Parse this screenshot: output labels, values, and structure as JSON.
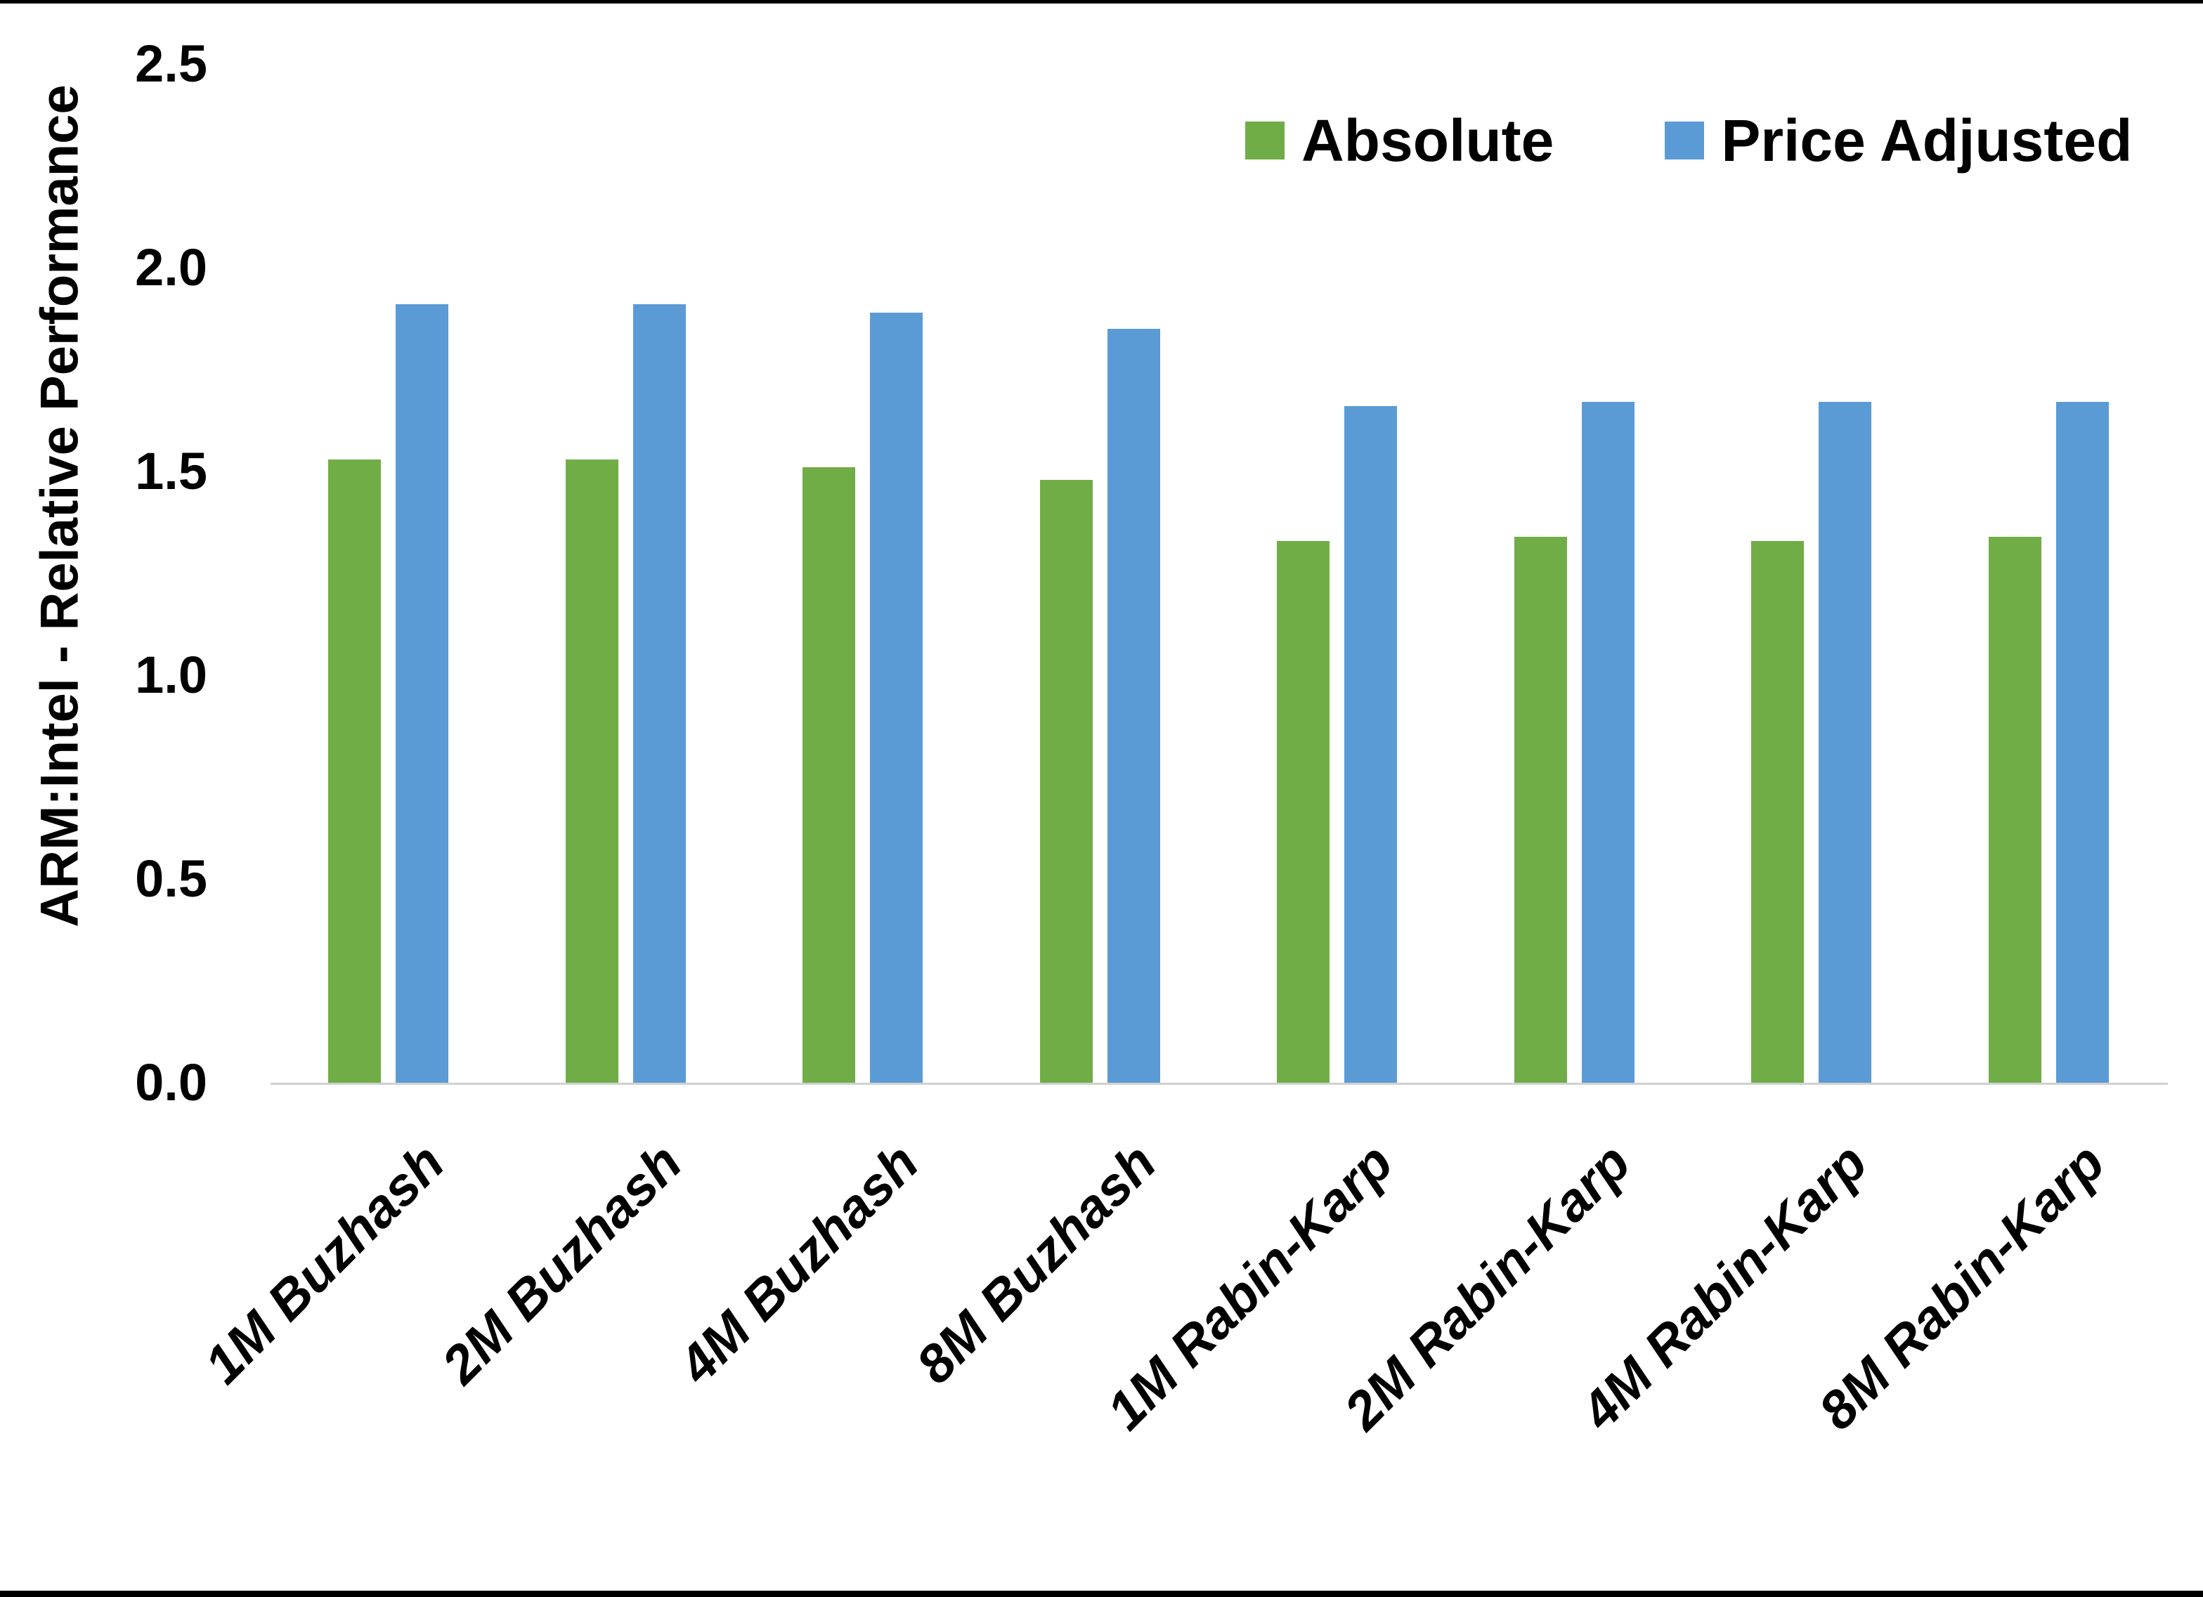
{
  "chart_data": {
    "type": "bar",
    "title": "",
    "xlabel": "",
    "ylabel": "ARM:Intel - Relative Performance",
    "ylim": [
      0,
      2.5
    ],
    "ytick_labels": [
      "0.0",
      "0.5",
      "1.0",
      "1.5",
      "2.0",
      "2.5"
    ],
    "grid": false,
    "legend_position": "top-right",
    "background_color": "#FFFFFF",
    "axis_line_color": "#D0D0D0",
    "categories": [
      "1M Buzhash",
      "2M Buzhash",
      "4M Buzhash",
      "8M Buzhash",
      "1M Rabin-Karp",
      "2M Rabin-Karp",
      "4M Rabin-Karp",
      "8M Rabin-Karp"
    ],
    "series": [
      {
        "name": "Absolute",
        "color": "#70AD47",
        "values": [
          1.53,
          1.53,
          1.51,
          1.48,
          1.33,
          1.34,
          1.33,
          1.34
        ]
      },
      {
        "name": "Price Adjusted",
        "color": "#5B9BD5",
        "values": [
          1.91,
          1.91,
          1.89,
          1.85,
          1.66,
          1.67,
          1.67,
          1.67
        ]
      }
    ]
  },
  "frame": {
    "top_border_color": "#000000",
    "bottom_bar_color": "#000000"
  }
}
